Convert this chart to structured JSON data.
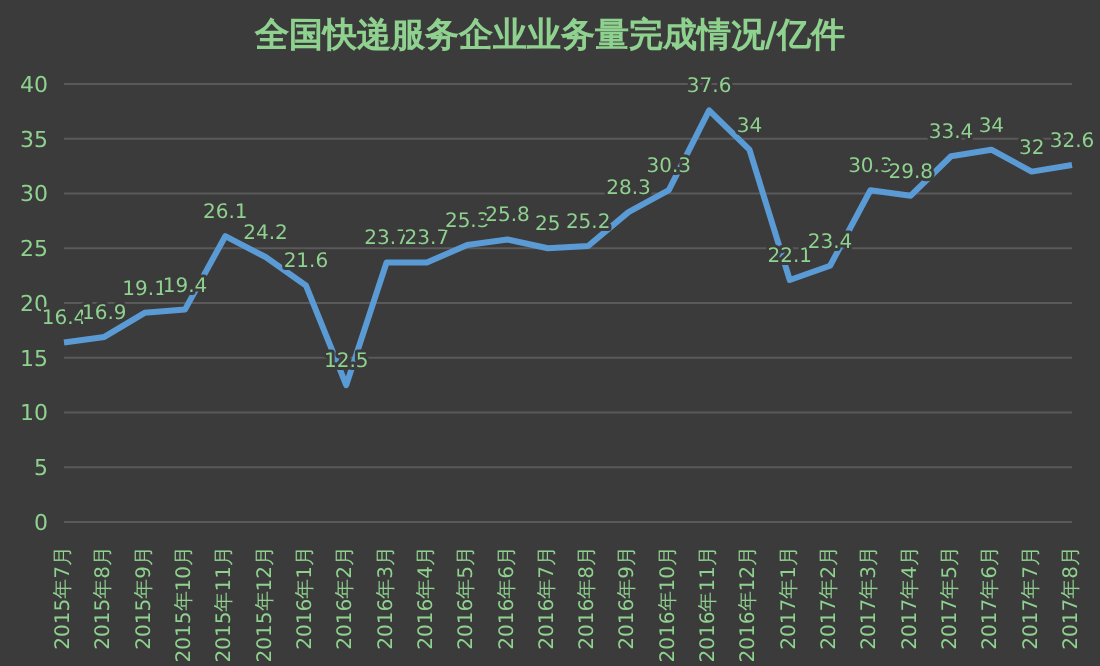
{
  "chart_data": {
    "type": "line",
    "title": "全国快递服务企业业务量完成情况/亿件",
    "categories": [
      "2015年7月",
      "2015年8月",
      "2015年9月",
      "2015年10月",
      "2015年11月",
      "2015年12月",
      "2016年1月",
      "2016年2月",
      "2016年3月",
      "2016年4月",
      "2016年5月",
      "2016年6月",
      "2016年7月",
      "2016年8月",
      "2016年9月",
      "2016年10月",
      "2016年11月",
      "2016年12月",
      "2017年1月",
      "2017年2月",
      "2017年3月",
      "2017年4月",
      "2017年5月",
      "2017年6月",
      "2017年7月",
      "2017年8月"
    ],
    "series": [
      {
        "color": "#5b9bd5",
        "values": [
          16.4,
          16.9,
          19.1,
          19.4,
          26.1,
          24.2,
          21.6,
          12.5,
          23.7,
          23.7,
          25.3,
          25.8,
          25,
          25.2,
          28.3,
          30.3,
          37.6,
          34,
          22.1,
          23.4,
          30.3,
          29.8,
          33.4,
          34,
          32,
          32.6
        ]
      }
    ],
    "ylim": [
      0,
      40
    ],
    "yticks": [
      0,
      5,
      10,
      15,
      20,
      25,
      30,
      35,
      40
    ],
    "grid": "y",
    "data_labels": true,
    "marker": "none",
    "line_style": "solid",
    "legend": false
  }
}
